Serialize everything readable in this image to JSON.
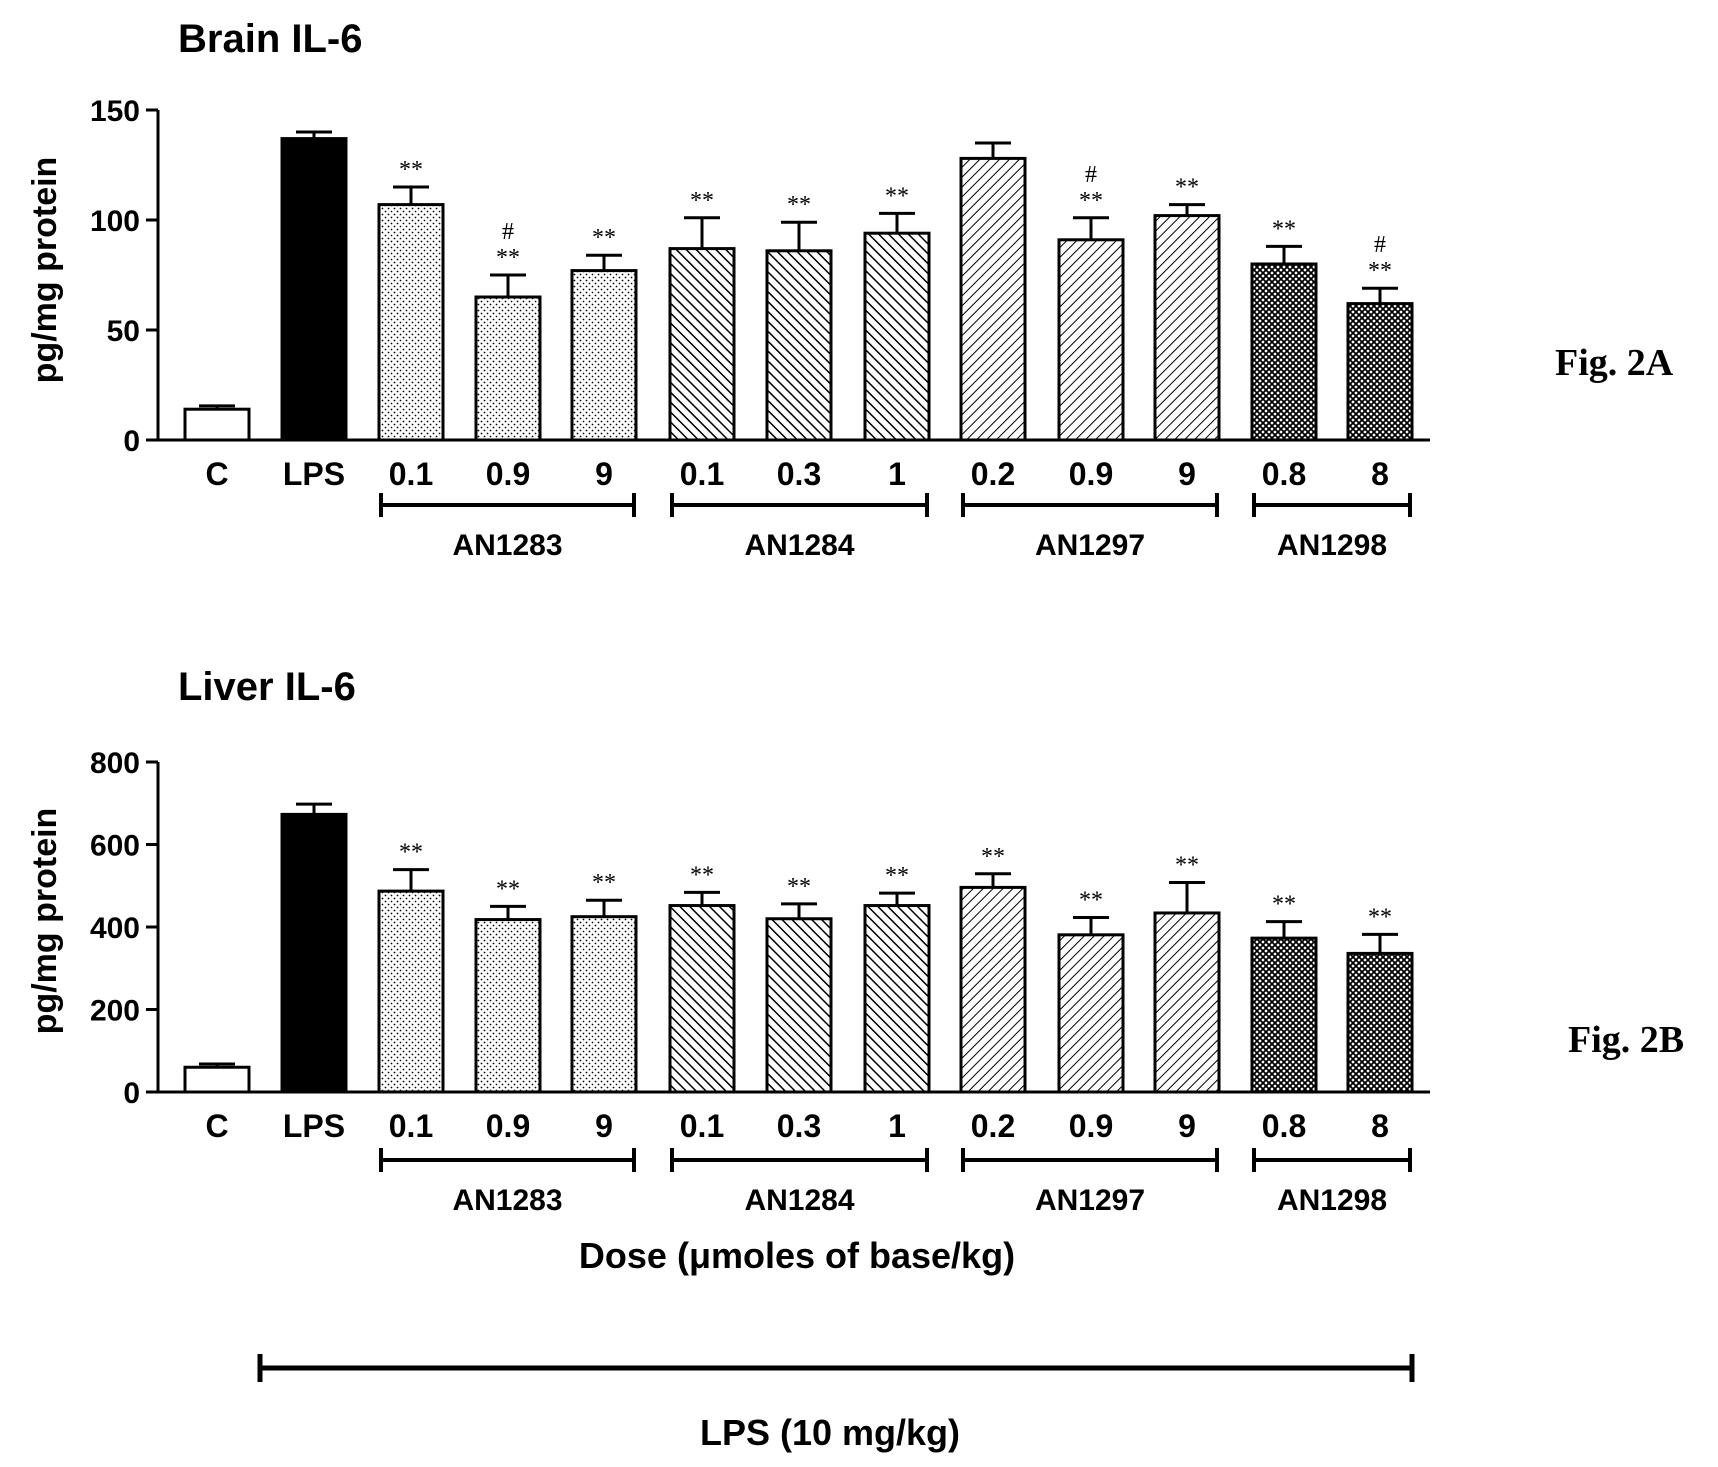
{
  "chart_data": [
    {
      "type": "bar",
      "title": "Brain IL-6",
      "ylabel": "pg/mg protein",
      "xlabel": "",
      "figure_label": "Fig. 2A",
      "ylim": [
        0,
        150
      ],
      "yticks": [
        "0",
        "50",
        "100",
        "150"
      ],
      "categories": [
        "C",
        "LPS",
        "0.1",
        "0.9",
        "9",
        "0.1",
        "0.3",
        "1",
        "0.2",
        "0.9",
        "9",
        "0.8",
        "8"
      ],
      "values": [
        14,
        137,
        107,
        65,
        77,
        87,
        86,
        94,
        128,
        91,
        102,
        80,
        62
      ],
      "errors": [
        1.5,
        3,
        8,
        10,
        7,
        14,
        13,
        9,
        7,
        10,
        5,
        8,
        7
      ],
      "annotations": [
        [
          "",
          ""
        ],
        [
          "",
          ""
        ],
        [
          "",
          "**"
        ],
        [
          "#",
          "**"
        ],
        [
          "",
          "**"
        ],
        [
          "",
          "**"
        ],
        [
          "",
          "**"
        ],
        [
          "",
          "**"
        ],
        [
          "",
          ""
        ],
        [
          "#",
          "**"
        ],
        [
          "",
          "**"
        ],
        [
          "",
          "**"
        ],
        [
          "#",
          "**"
        ]
      ],
      "groups": [
        {
          "label": "AN1283",
          "start": 2,
          "end": 4
        },
        {
          "label": "AN1284",
          "start": 5,
          "end": 7
        },
        {
          "label": "AN1297",
          "start": 8,
          "end": 10
        },
        {
          "label": "AN1298",
          "start": 11,
          "end": 12
        }
      ]
    },
    {
      "type": "bar",
      "title": "Liver IL-6",
      "ylabel": "pg/mg protein",
      "xlabel": "Dose (μmoles of base/kg)",
      "figure_label": "Fig. 2B",
      "ylim": [
        0,
        800
      ],
      "yticks": [
        "0",
        "200",
        "400",
        "600",
        "800"
      ],
      "categories": [
        "C",
        "LPS",
        "0.1",
        "0.9",
        "9",
        "0.1",
        "0.3",
        "1",
        "0.2",
        "0.9",
        "9",
        "0.8",
        "8"
      ],
      "values": [
        60,
        673,
        487,
        418,
        425,
        452,
        420,
        452,
        496,
        381,
        434,
        373,
        336
      ],
      "errors": [
        8,
        25,
        52,
        32,
        40,
        32,
        36,
        30,
        33,
        42,
        74,
        40,
        46
      ],
      "annotations": [
        [
          "",
          ""
        ],
        [
          "",
          ""
        ],
        [
          "",
          "**"
        ],
        [
          "",
          "**"
        ],
        [
          "",
          "**"
        ],
        [
          "",
          "**"
        ],
        [
          "",
          "**"
        ],
        [
          "",
          "**"
        ],
        [
          "",
          "**"
        ],
        [
          "",
          "**"
        ],
        [
          "",
          "**"
        ],
        [
          "",
          "**"
        ],
        [
          "",
          "**"
        ]
      ],
      "groups": [
        {
          "label": "AN1283",
          "start": 2,
          "end": 4
        },
        {
          "label": "AN1284",
          "start": 5,
          "end": 7
        },
        {
          "label": "AN1297",
          "start": 8,
          "end": 10
        },
        {
          "label": "AN1298",
          "start": 11,
          "end": 12
        }
      ]
    }
  ],
  "bottom_label": "LPS (10 mg/kg)"
}
